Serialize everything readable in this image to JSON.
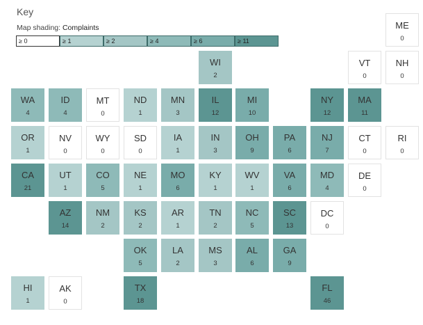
{
  "key": {
    "title": "Key",
    "shading_label": "Map shading:",
    "metric": "Complaints"
  },
  "legend": [
    {
      "label": "≥ 0",
      "color": "#ffffff"
    },
    {
      "label": "≥ 1",
      "color": "#b5d2d1"
    },
    {
      "label": "≥ 2",
      "color": "#a4c6c5"
    },
    {
      "label": "≥ 4",
      "color": "#8ebab8"
    },
    {
      "label": "≥ 6",
      "color": "#79acaa"
    },
    {
      "label": "≥ 11",
      "color": "#5c9592"
    }
  ],
  "states": [
    {
      "abbr": "ME",
      "value": 0,
      "col": 10,
      "row": 0
    },
    {
      "abbr": "WI",
      "value": 2,
      "col": 5,
      "row": 1
    },
    {
      "abbr": "VT",
      "value": 0,
      "col": 9,
      "row": 1
    },
    {
      "abbr": "NH",
      "value": 0,
      "col": 10,
      "row": 1
    },
    {
      "abbr": "WA",
      "value": 4,
      "col": 0,
      "row": 2
    },
    {
      "abbr": "ID",
      "value": 4,
      "col": 1,
      "row": 2
    },
    {
      "abbr": "MT",
      "value": 0,
      "col": 2,
      "row": 2
    },
    {
      "abbr": "ND",
      "value": 1,
      "col": 3,
      "row": 2
    },
    {
      "abbr": "MN",
      "value": 3,
      "col": 4,
      "row": 2
    },
    {
      "abbr": "IL",
      "value": 12,
      "col": 5,
      "row": 2
    },
    {
      "abbr": "MI",
      "value": 10,
      "col": 6,
      "row": 2
    },
    {
      "abbr": "NY",
      "value": 12,
      "col": 8,
      "row": 2
    },
    {
      "abbr": "MA",
      "value": 11,
      "col": 9,
      "row": 2
    },
    {
      "abbr": "OR",
      "value": 1,
      "col": 0,
      "row": 3
    },
    {
      "abbr": "NV",
      "value": 0,
      "col": 1,
      "row": 3
    },
    {
      "abbr": "WY",
      "value": 0,
      "col": 2,
      "row": 3
    },
    {
      "abbr": "SD",
      "value": 0,
      "col": 3,
      "row": 3
    },
    {
      "abbr": "IA",
      "value": 1,
      "col": 4,
      "row": 3
    },
    {
      "abbr": "IN",
      "value": 3,
      "col": 5,
      "row": 3
    },
    {
      "abbr": "OH",
      "value": 9,
      "col": 6,
      "row": 3
    },
    {
      "abbr": "PA",
      "value": 6,
      "col": 7,
      "row": 3
    },
    {
      "abbr": "NJ",
      "value": 7,
      "col": 8,
      "row": 3
    },
    {
      "abbr": "CT",
      "value": 0,
      "col": 9,
      "row": 3
    },
    {
      "abbr": "RI",
      "value": 0,
      "col": 10,
      "row": 3
    },
    {
      "abbr": "CA",
      "value": 21,
      "col": 0,
      "row": 4
    },
    {
      "abbr": "UT",
      "value": 1,
      "col": 1,
      "row": 4
    },
    {
      "abbr": "CO",
      "value": 5,
      "col": 2,
      "row": 4
    },
    {
      "abbr": "NE",
      "value": 1,
      "col": 3,
      "row": 4
    },
    {
      "abbr": "MO",
      "value": 6,
      "col": 4,
      "row": 4
    },
    {
      "abbr": "KY",
      "value": 1,
      "col": 5,
      "row": 4
    },
    {
      "abbr": "WV",
      "value": 1,
      "col": 6,
      "row": 4
    },
    {
      "abbr": "VA",
      "value": 6,
      "col": 7,
      "row": 4
    },
    {
      "abbr": "MD",
      "value": 4,
      "col": 8,
      "row": 4
    },
    {
      "abbr": "DE",
      "value": 0,
      "col": 9,
      "row": 4
    },
    {
      "abbr": "AZ",
      "value": 14,
      "col": 1,
      "row": 5
    },
    {
      "abbr": "NM",
      "value": 2,
      "col": 2,
      "row": 5
    },
    {
      "abbr": "KS",
      "value": 2,
      "col": 3,
      "row": 5
    },
    {
      "abbr": "AR",
      "value": 1,
      "col": 4,
      "row": 5
    },
    {
      "abbr": "TN",
      "value": 2,
      "col": 5,
      "row": 5
    },
    {
      "abbr": "NC",
      "value": 5,
      "col": 6,
      "row": 5
    },
    {
      "abbr": "SC",
      "value": 13,
      "col": 7,
      "row": 5
    },
    {
      "abbr": "DC",
      "value": 0,
      "col": 8,
      "row": 5
    },
    {
      "abbr": "OK",
      "value": 5,
      "col": 3,
      "row": 6
    },
    {
      "abbr": "LA",
      "value": 2,
      "col": 4,
      "row": 6
    },
    {
      "abbr": "MS",
      "value": 3,
      "col": 5,
      "row": 6
    },
    {
      "abbr": "AL",
      "value": 6,
      "col": 6,
      "row": 6
    },
    {
      "abbr": "GA",
      "value": 9,
      "col": 7,
      "row": 6
    },
    {
      "abbr": "HI",
      "value": 1,
      "col": 0,
      "row": 7
    },
    {
      "abbr": "AK",
      "value": 0,
      "col": 1,
      "row": 7
    },
    {
      "abbr": "TX",
      "value": 18,
      "col": 3,
      "row": 7
    },
    {
      "abbr": "FL",
      "value": 46,
      "col": 8,
      "row": 7
    }
  ]
}
